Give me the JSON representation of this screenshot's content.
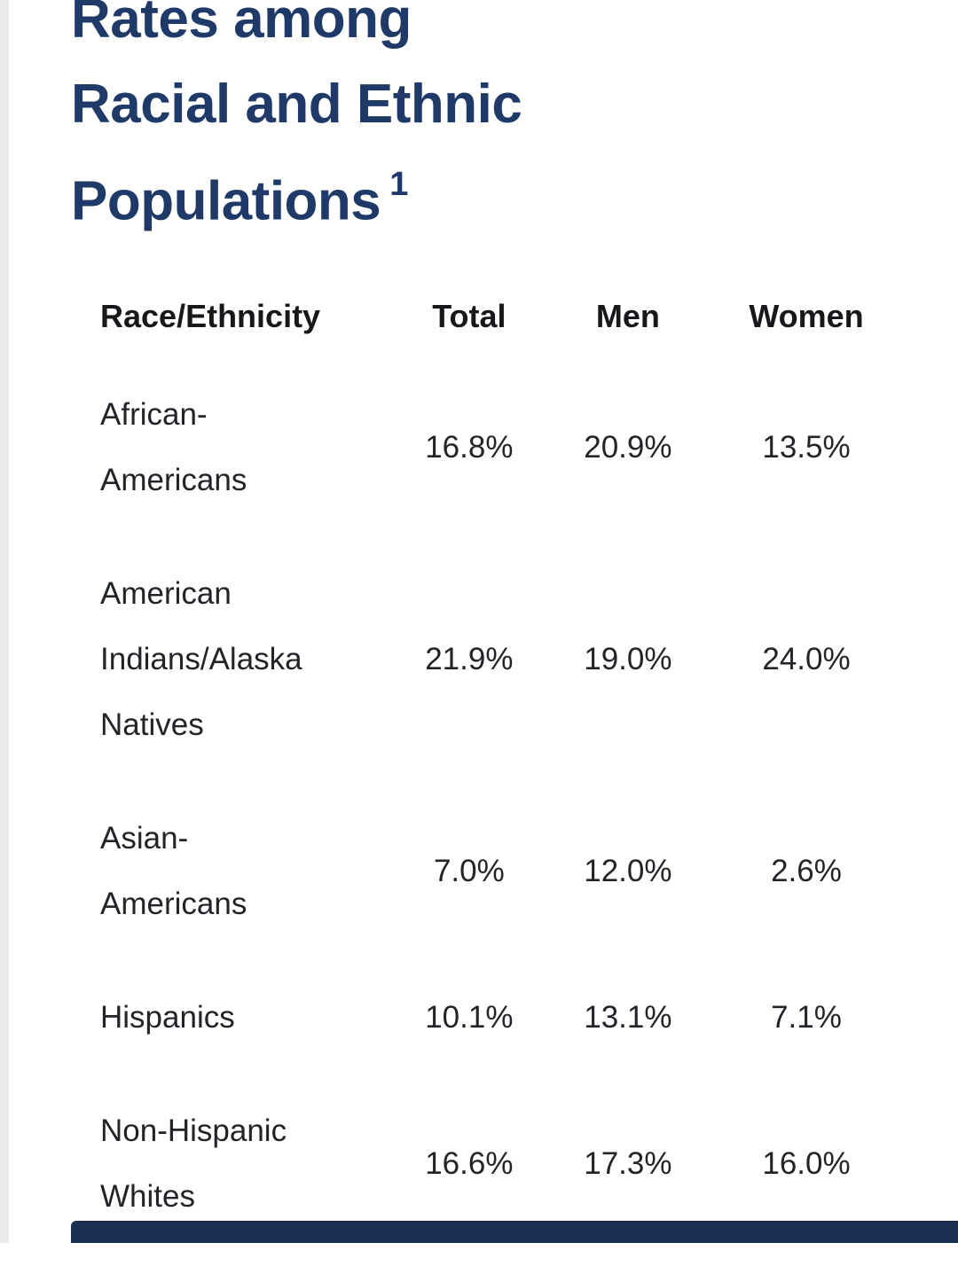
{
  "title": {
    "lines": [
      "Rates among",
      "Racial and Ethnic",
      "Populations"
    ],
    "superscript": "1"
  },
  "table": {
    "headers": [
      "Race/Ethnicity",
      "Total",
      "Men",
      "Women"
    ],
    "rows": [
      {
        "name": "African-Americans",
        "name_lines": [
          "African-",
          "Americans"
        ],
        "total": "16.8%",
        "men": "20.9%",
        "women": "13.5%"
      },
      {
        "name": "American Indians/Alaska Natives",
        "name_lines": [
          "American",
          "Indians/Alaska",
          "Natives"
        ],
        "total": "21.9%",
        "men": "19.0%",
        "women": "24.0%"
      },
      {
        "name": "Asian-Americans",
        "name_lines": [
          "Asian-",
          "Americans"
        ],
        "total": "7.0%",
        "men": "12.0%",
        "women": "2.6%"
      },
      {
        "name": "Hispanics",
        "name_lines": [
          "Hispanics"
        ],
        "total": "10.1%",
        "men": "13.1%",
        "women": "7.1%"
      },
      {
        "name": "Non-Hispanic Whites",
        "name_lines": [
          "Non-Hispanic",
          "Whites"
        ],
        "total": "16.6%",
        "men": "17.3%",
        "women": "16.0%"
      }
    ]
  },
  "colors": {
    "heading": "#1f3a68",
    "body_text": "#212529",
    "header_text": "#16181b",
    "footer_bar": "#1b2f55",
    "left_edge": "#ebebeb",
    "background": "#ffffff"
  }
}
